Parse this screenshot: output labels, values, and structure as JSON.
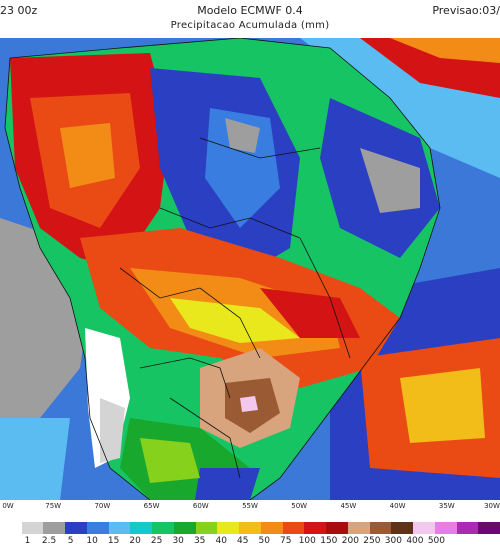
{
  "header": {
    "run_label": "23 00z",
    "title": "Modelo ECMWF 0.4",
    "subtitle": "Precipitacao Acumulada (mm)",
    "forecast_label": "Previsao:03/"
  },
  "map": {
    "longitude_labels": [
      "0W",
      "75W",
      "70W",
      "65W",
      "60W",
      "55W",
      "50W",
      "45W",
      "40W",
      "35W",
      "30W"
    ]
  },
  "legend": {
    "unit": "mm",
    "values": [
      "1",
      "2.5",
      "5",
      "10",
      "15",
      "20",
      "25",
      "30",
      "35",
      "40",
      "45",
      "50",
      "75",
      "100",
      "150",
      "200",
      "250",
      "300",
      "400",
      "500"
    ],
    "colors": [
      "#ffffff",
      "#d4d4d4",
      "#9e9e9e",
      "#2a3fc2",
      "#3a7de0",
      "#5bbcf2",
      "#14c9c9",
      "#16c464",
      "#19a82e",
      "#86d11c",
      "#e8e81c",
      "#f2bd18",
      "#f28c16",
      "#ea4a14",
      "#d41414",
      "#a80c0c",
      "#d8a47e",
      "#9a5a34",
      "#5e3216",
      "#f2c8ee",
      "#e67ee6",
      "#aa2ab4",
      "#6a0a6e"
    ]
  }
}
